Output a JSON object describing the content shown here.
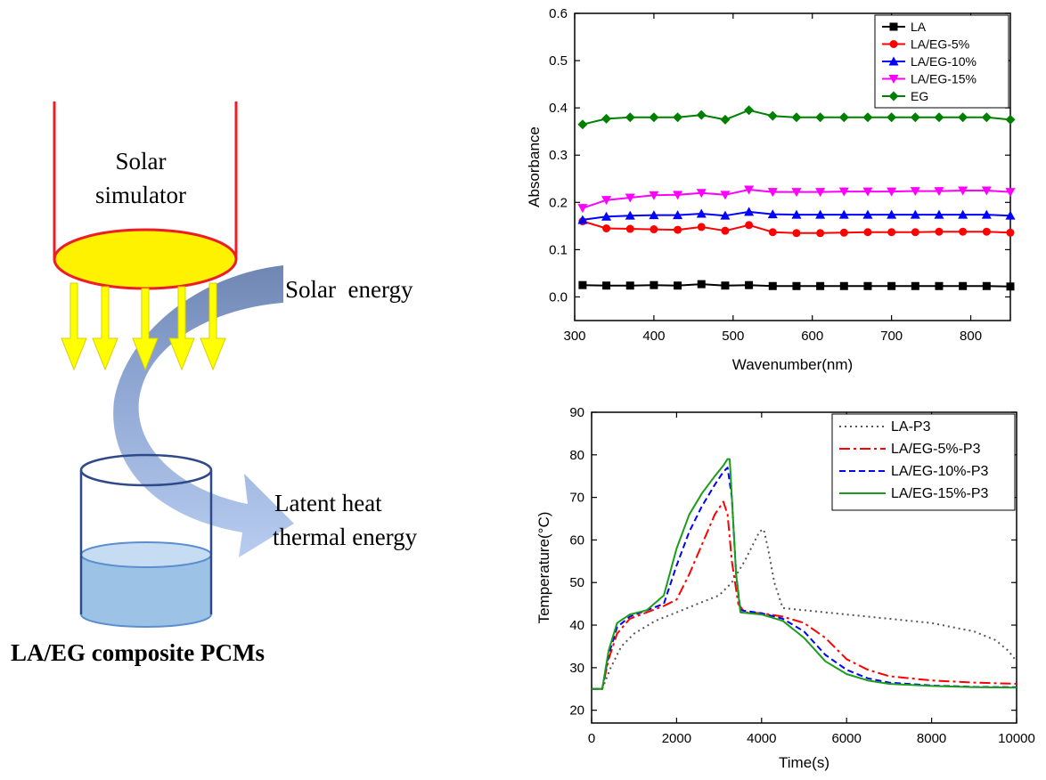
{
  "schematic": {
    "simulator_label_line1": "Solar",
    "simulator_label_line2": "simulator",
    "solar_energy_label": "Solar  energy",
    "latent_label_line1": "Latent heat",
    "latent_label_line2": "thermal energy",
    "composite_label": "LA/EG composite PCMs",
    "colors": {
      "lamp_frame": "#ee1c25",
      "lamp_fill": "#fff200",
      "rays": "#ffff00",
      "rays_edge": "#e0d800",
      "arrow_dark": "#6f86b3",
      "arrow_light": "#aec4ec",
      "beaker_outline": "#2e4a8a",
      "liquid": "#9cc3e6",
      "liquid_top": "#c5dcf2"
    }
  },
  "chart_data": [
    {
      "type": "line",
      "title": "",
      "xlabel": "Wavenumber(nm)",
      "ylabel": "Absorbance",
      "xlim": [
        300,
        850
      ],
      "ylim": [
        -0.05,
        0.6
      ],
      "xticks": [
        300,
        400,
        500,
        600,
        700,
        800
      ],
      "yticks": [
        0.0,
        0.1,
        0.2,
        0.3,
        0.4,
        0.5,
        0.6
      ],
      "xtick_labels": [
        "300",
        "400",
        "500",
        "600",
        "700",
        "800"
      ],
      "ytick_labels": [
        "0.0",
        "0.1",
        "0.2",
        "0.3",
        "0.4",
        "0.5",
        "0.6"
      ],
      "legend": "top-right",
      "series": [
        {
          "name": "LA",
          "color": "#000000",
          "marker": "square",
          "x": [
            310,
            340,
            370,
            400,
            430,
            460,
            490,
            520,
            550,
            580,
            610,
            640,
            670,
            700,
            730,
            760,
            790,
            820,
            850
          ],
          "values": [
            0.025,
            0.024,
            0.024,
            0.025,
            0.024,
            0.027,
            0.024,
            0.025,
            0.023,
            0.023,
            0.023,
            0.023,
            0.023,
            0.023,
            0.023,
            0.023,
            0.023,
            0.023,
            0.022
          ]
        },
        {
          "name": "LA/EG-5%",
          "color": "#ff0000",
          "marker": "circle",
          "x": [
            310,
            340,
            370,
            400,
            430,
            460,
            490,
            520,
            550,
            580,
            610,
            640,
            670,
            700,
            730,
            760,
            790,
            820,
            850
          ],
          "values": [
            0.16,
            0.145,
            0.144,
            0.143,
            0.142,
            0.148,
            0.14,
            0.152,
            0.137,
            0.135,
            0.135,
            0.136,
            0.137,
            0.137,
            0.137,
            0.138,
            0.138,
            0.138,
            0.136
          ]
        },
        {
          "name": "LA/EG-10%",
          "color": "#0000ff",
          "marker": "triangle-up",
          "x": [
            310,
            340,
            370,
            400,
            430,
            460,
            490,
            520,
            550,
            580,
            610,
            640,
            670,
            700,
            730,
            760,
            790,
            820,
            850
          ],
          "values": [
            0.163,
            0.17,
            0.172,
            0.173,
            0.173,
            0.176,
            0.172,
            0.18,
            0.175,
            0.174,
            0.174,
            0.174,
            0.174,
            0.174,
            0.174,
            0.174,
            0.174,
            0.174,
            0.172
          ]
        },
        {
          "name": "LA/EG-15%",
          "color": "#ff00ff",
          "marker": "triangle-down",
          "x": [
            310,
            340,
            370,
            400,
            430,
            460,
            490,
            520,
            550,
            580,
            610,
            640,
            670,
            700,
            730,
            760,
            790,
            820,
            850
          ],
          "values": [
            0.188,
            0.205,
            0.21,
            0.215,
            0.216,
            0.22,
            0.216,
            0.227,
            0.222,
            0.222,
            0.222,
            0.223,
            0.223,
            0.223,
            0.224,
            0.224,
            0.225,
            0.225,
            0.222
          ]
        },
        {
          "name": "EG",
          "color": "#008000",
          "marker": "diamond",
          "x": [
            310,
            340,
            370,
            400,
            430,
            460,
            490,
            520,
            550,
            580,
            610,
            640,
            670,
            700,
            730,
            760,
            790,
            820,
            850
          ],
          "values": [
            0.365,
            0.377,
            0.38,
            0.38,
            0.38,
            0.385,
            0.375,
            0.395,
            0.383,
            0.38,
            0.38,
            0.38,
            0.38,
            0.38,
            0.38,
            0.38,
            0.38,
            0.38,
            0.375
          ]
        }
      ]
    },
    {
      "type": "line",
      "title": "",
      "xlabel": "Time(s)",
      "ylabel": "Temperature(°C)",
      "xlim": [
        0,
        10000
      ],
      "ylim": [
        17,
        90
      ],
      "xticks": [
        0,
        2000,
        4000,
        6000,
        8000,
        10000
      ],
      "yticks": [
        20,
        30,
        40,
        50,
        60,
        70,
        80,
        90
      ],
      "xtick_labels": [
        "0",
        "2000",
        "4000",
        "6000",
        "8000",
        "10000"
      ],
      "ytick_labels": [
        "20",
        "30",
        "40",
        "50",
        "60",
        "70",
        "80",
        "90"
      ],
      "legend": "top-right",
      "series": [
        {
          "name": "LA-P3",
          "color": "#555555",
          "style": "dotted",
          "x": [
            0,
            250,
            450,
            700,
            1000,
            1500,
            2000,
            2500,
            3000,
            3300,
            3600,
            3800,
            3950,
            4050,
            4150,
            4300,
            4500,
            5000,
            6000,
            7000,
            8000,
            9000,
            9500,
            9800,
            10000
          ],
          "values": [
            25,
            25,
            30,
            35,
            38,
            41,
            43,
            45,
            47,
            50,
            55,
            59,
            62,
            62.5,
            58,
            50,
            44,
            43.5,
            42.5,
            41.5,
            40.5,
            38.5,
            36.5,
            34,
            31.5
          ]
        },
        {
          "name": "LA/EG-5%-P3",
          "color": "#ff0000",
          "style": "dashdot",
          "x": [
            0,
            250,
            400,
            600,
            900,
            1300,
            1700,
            2000,
            2300,
            2600,
            2900,
            3100,
            3200,
            3300,
            3450,
            3600,
            4000,
            4500,
            5000,
            5500,
            6000,
            6500,
            7000,
            8000,
            9000,
            10000
          ],
          "values": [
            25,
            25,
            32,
            38,
            41.5,
            43,
            44.5,
            46,
            52,
            59,
            66,
            69,
            66,
            55,
            45,
            43,
            42.8,
            42,
            40.5,
            37,
            32,
            29.5,
            28,
            27,
            26.5,
            26.2
          ]
        },
        {
          "name": "LA/EG-10%-P3",
          "color": "#0000ff",
          "style": "dashed",
          "x": [
            0,
            250,
            400,
            600,
            900,
            1300,
            1700,
            2000,
            2300,
            2600,
            2900,
            3100,
            3200,
            3300,
            3400,
            3500,
            4000,
            4500,
            5000,
            5500,
            6000,
            6500,
            7000,
            8000,
            9000,
            10000
          ],
          "values": [
            25,
            25,
            33,
            39.5,
            42,
            43.5,
            45,
            54,
            62,
            68,
            73,
            76,
            77,
            70,
            52,
            43.5,
            42.8,
            41.5,
            38.5,
            33,
            29.5,
            27.5,
            26.5,
            25.8,
            25.5,
            25.4
          ]
        },
        {
          "name": "LA/EG-15%-P3",
          "color": "#1a9e1a",
          "style": "solid",
          "x": [
            0,
            250,
            400,
            600,
            900,
            1300,
            1700,
            2000,
            2300,
            2600,
            2900,
            3100,
            3200,
            3250,
            3300,
            3400,
            3500,
            4000,
            4500,
            5000,
            5500,
            6000,
            6500,
            7000,
            8000,
            9000,
            10000
          ],
          "values": [
            25,
            25,
            34,
            40.5,
            42.5,
            43.5,
            47,
            58,
            66,
            71,
            75,
            77.5,
            79,
            79,
            70,
            52,
            43,
            42.5,
            41,
            37,
            31.5,
            28.5,
            27,
            26.2,
            25.7,
            25.4,
            25.3
          ]
        }
      ]
    }
  ]
}
